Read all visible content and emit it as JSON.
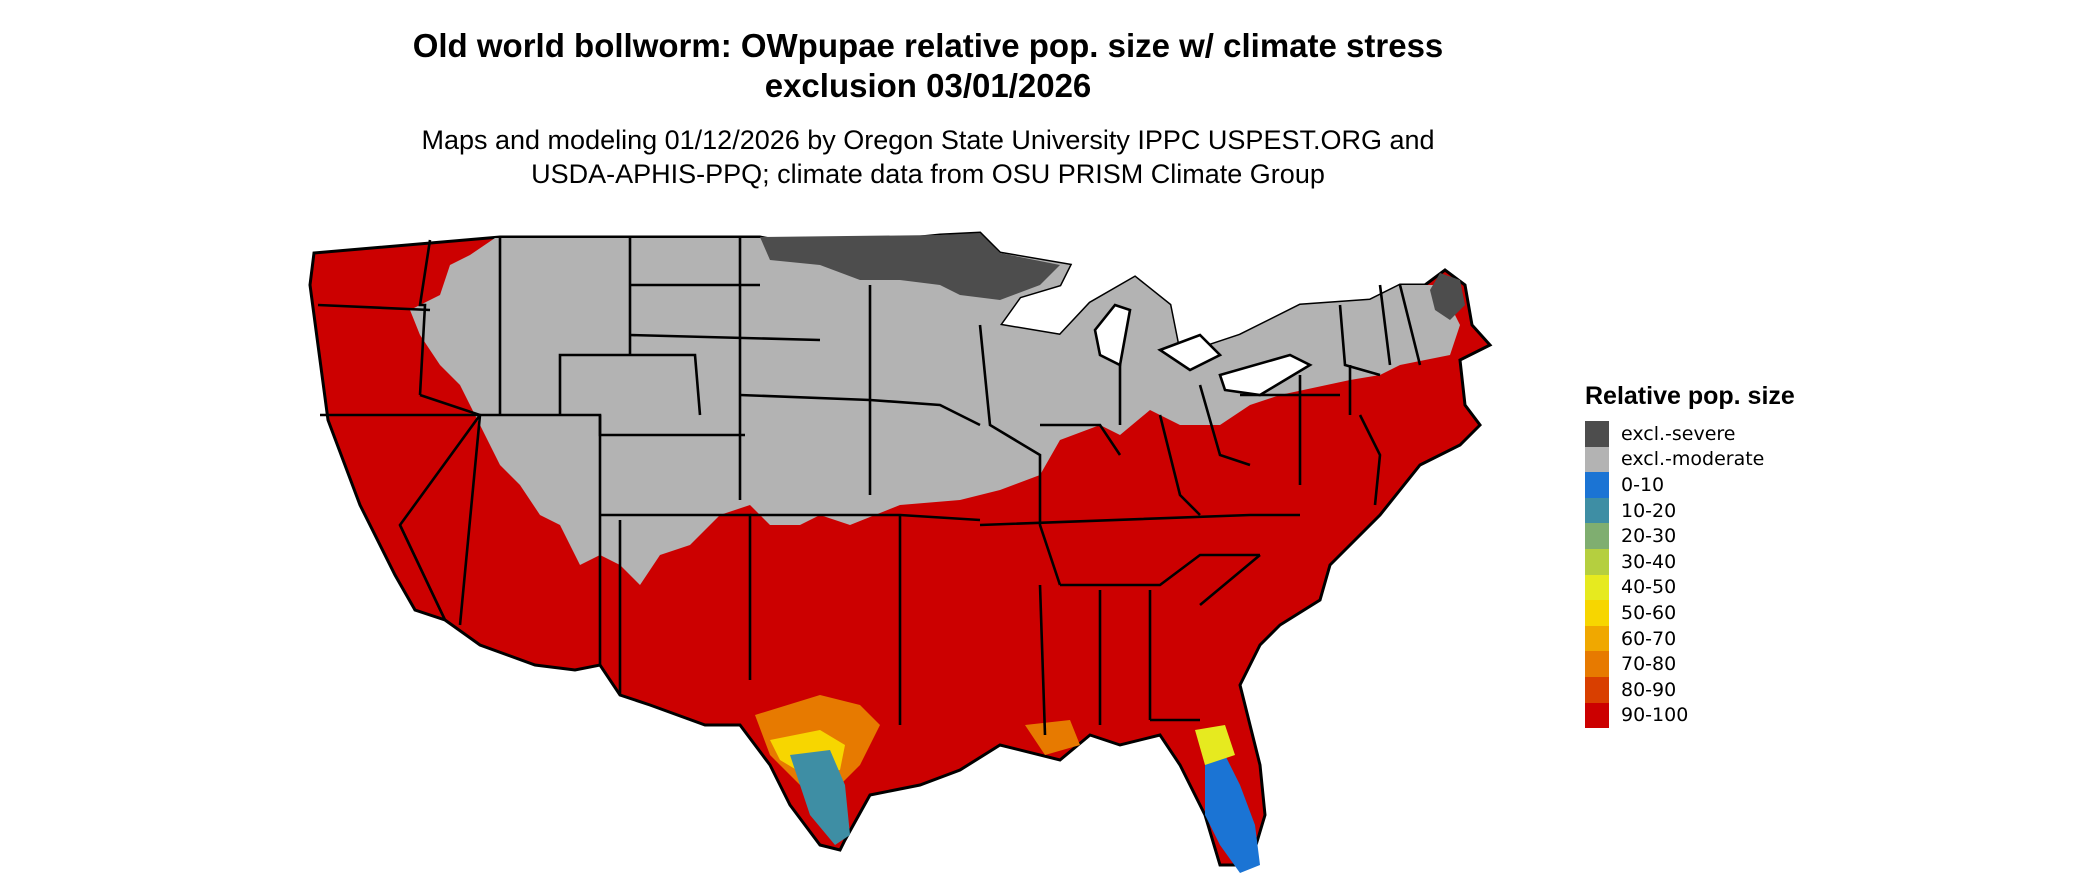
{
  "title_lines": [
    "Old world bollworm: OWpupae relative pop. size w/ climate stress",
    "exclusion 03/01/2026"
  ],
  "subtitle_lines": [
    "Maps and modeling 01/12/2026 by Oregon State University IPPC USPEST.ORG and",
    "USDA-APHIS-PPQ; climate data from OSU PRISM Climate Group"
  ],
  "legend": {
    "title": "Relative pop. size",
    "items": [
      {
        "label": "excl.-severe",
        "color": "#4d4d4d"
      },
      {
        "label": "excl.-moderate",
        "color": "#b3b3b3"
      },
      {
        "label": "0-10",
        "color": "#1b74d4"
      },
      {
        "label": "10-20",
        "color": "#3e8ea4"
      },
      {
        "label": "20-30",
        "color": "#7fae70"
      },
      {
        "label": "30-40",
        "color": "#b5cf3f"
      },
      {
        "label": "40-50",
        "color": "#e6ea1f"
      },
      {
        "label": "50-60",
        "color": "#f7d600"
      },
      {
        "label": "60-70",
        "color": "#f0a800"
      },
      {
        "label": "70-80",
        "color": "#e77a00"
      },
      {
        "label": "80-90",
        "color": "#d93f00"
      },
      {
        "label": "90-100",
        "color": "#cc0000"
      }
    ]
  },
  "map": {
    "region": "Contiguous United States",
    "colors": {
      "severe": "#4d4d4d",
      "moderate": "#b3b3b3",
      "high": "#cc0000",
      "outline": "#000000"
    }
  }
}
